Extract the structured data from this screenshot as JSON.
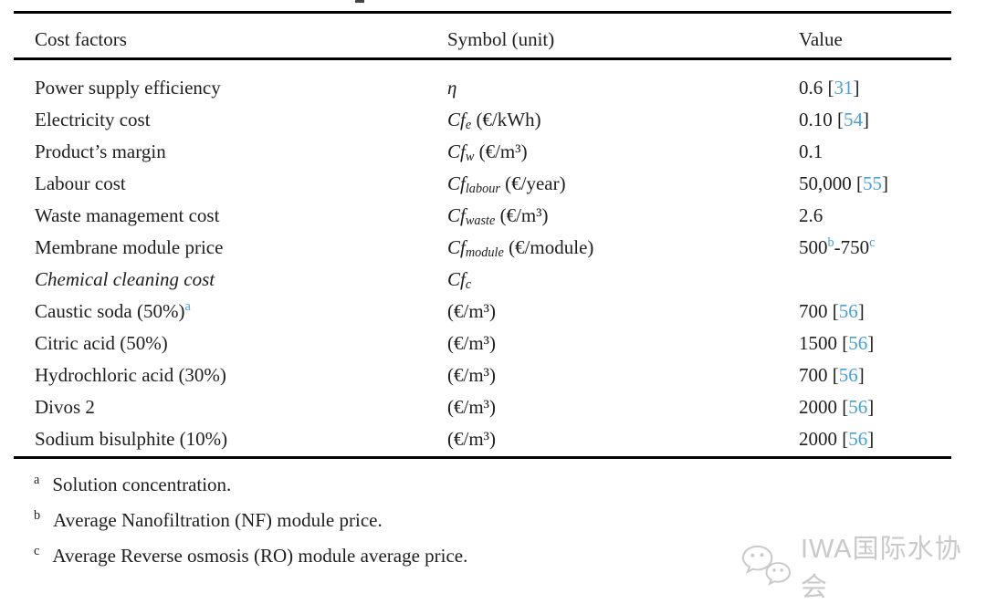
{
  "colors": {
    "text": "#1e1e1e",
    "citation_blue": "#45a1d8",
    "rule": "#000000",
    "watermark": "#c9c9c9"
  },
  "table": {
    "header": {
      "col1": "Cost factors",
      "col2": "Symbol (unit)",
      "col3": "Value"
    },
    "rows": [
      {
        "factor": [
          {
            "t": "Power supply efficiency"
          }
        ],
        "symbol": [
          {
            "t": "η",
            "i": true
          }
        ],
        "value": [
          {
            "t": "0.6 "
          },
          {
            "t": "["
          },
          {
            "t": "31",
            "blue": true
          },
          {
            "t": "]"
          }
        ]
      },
      {
        "factor": [
          {
            "t": "Electricity cost"
          }
        ],
        "symbol": [
          {
            "t": "Cf",
            "i": true
          },
          {
            "t": "e",
            "i": true,
            "sub": true
          },
          {
            "t": " (€/kWh)"
          }
        ],
        "value": [
          {
            "t": "0.10 "
          },
          {
            "t": "["
          },
          {
            "t": "54",
            "blue": true
          },
          {
            "t": "]"
          }
        ]
      },
      {
        "factor": [
          {
            "t": "Product’s margin"
          }
        ],
        "symbol": [
          {
            "t": "Cf",
            "i": true
          },
          {
            "t": "w",
            "i": true,
            "sub": true
          },
          {
            "t": " (€/m³)"
          }
        ],
        "value": [
          {
            "t": "0.1"
          }
        ]
      },
      {
        "factor": [
          {
            "t": "Labour cost"
          }
        ],
        "symbol": [
          {
            "t": "Cf",
            "i": true
          },
          {
            "t": "labour",
            "i": true,
            "sub": true
          },
          {
            "t": " (€/year)"
          }
        ],
        "value": [
          {
            "t": "50,000 "
          },
          {
            "t": "["
          },
          {
            "t": "55",
            "blue": true
          },
          {
            "t": "]"
          }
        ]
      },
      {
        "factor": [
          {
            "t": "Waste management cost"
          }
        ],
        "symbol": [
          {
            "t": "Cf",
            "i": true
          },
          {
            "t": "waste",
            "i": true,
            "sub": true
          },
          {
            "t": " (€/m³)"
          }
        ],
        "value": [
          {
            "t": "2.6"
          }
        ]
      },
      {
        "factor": [
          {
            "t": "Membrane module price"
          }
        ],
        "symbol": [
          {
            "t": "Cf",
            "i": true
          },
          {
            "t": "module",
            "i": true,
            "sub": true
          },
          {
            "t": " (€/module)"
          }
        ],
        "value": [
          {
            "t": "500"
          },
          {
            "t": "b",
            "blue": true,
            "sup": true
          },
          {
            "t": "-750"
          },
          {
            "t": "c",
            "blue": true,
            "sup": true
          }
        ]
      },
      {
        "factor": [
          {
            "t": "Chemical cleaning cost",
            "i": true
          }
        ],
        "symbol": [
          {
            "t": "Cf",
            "i": true
          },
          {
            "t": "c",
            "i": true,
            "sub": true
          }
        ],
        "value": []
      },
      {
        "factor": [
          {
            "t": "Caustic soda (50%)"
          },
          {
            "t": "a",
            "blue": true,
            "sup": true
          }
        ],
        "symbol": [
          {
            "t": "(€/m³)"
          }
        ],
        "value": [
          {
            "t": "700 "
          },
          {
            "t": "["
          },
          {
            "t": "56",
            "blue": true
          },
          {
            "t": "]"
          }
        ]
      },
      {
        "factor": [
          {
            "t": "Citric acid (50%)"
          }
        ],
        "symbol": [
          {
            "t": "(€/m³)"
          }
        ],
        "value": [
          {
            "t": "1500 "
          },
          {
            "t": "["
          },
          {
            "t": "56",
            "blue": true
          },
          {
            "t": "]"
          }
        ]
      },
      {
        "factor": [
          {
            "t": "Hydrochloric acid (30%)"
          }
        ],
        "symbol": [
          {
            "t": "(€/m³)"
          }
        ],
        "value": [
          {
            "t": "700 "
          },
          {
            "t": "["
          },
          {
            "t": "56",
            "blue": true
          },
          {
            "t": "]"
          }
        ]
      },
      {
        "factor": [
          {
            "t": "Divos 2"
          }
        ],
        "symbol": [
          {
            "t": "(€/m³)"
          }
        ],
        "value": [
          {
            "t": "2000 "
          },
          {
            "t": "["
          },
          {
            "t": "56",
            "blue": true
          },
          {
            "t": "]"
          }
        ]
      },
      {
        "factor": [
          {
            "t": "Sodium bisulphite (10%)"
          }
        ],
        "symbol": [
          {
            "t": "(€/m³)"
          }
        ],
        "value": [
          {
            "t": "2000 "
          },
          {
            "t": "["
          },
          {
            "t": "56",
            "blue": true
          },
          {
            "t": "]"
          }
        ]
      }
    ]
  },
  "footnotes": [
    {
      "marker": "a",
      "text": "Solution concentration."
    },
    {
      "marker": "b",
      "text": "Average Nanofiltration (NF) module price."
    },
    {
      "marker": "c",
      "text": "Average Reverse osmosis (RO) module average price."
    }
  ],
  "watermark": {
    "icon": "wechat-icon",
    "label": "IWA国际水协会"
  }
}
